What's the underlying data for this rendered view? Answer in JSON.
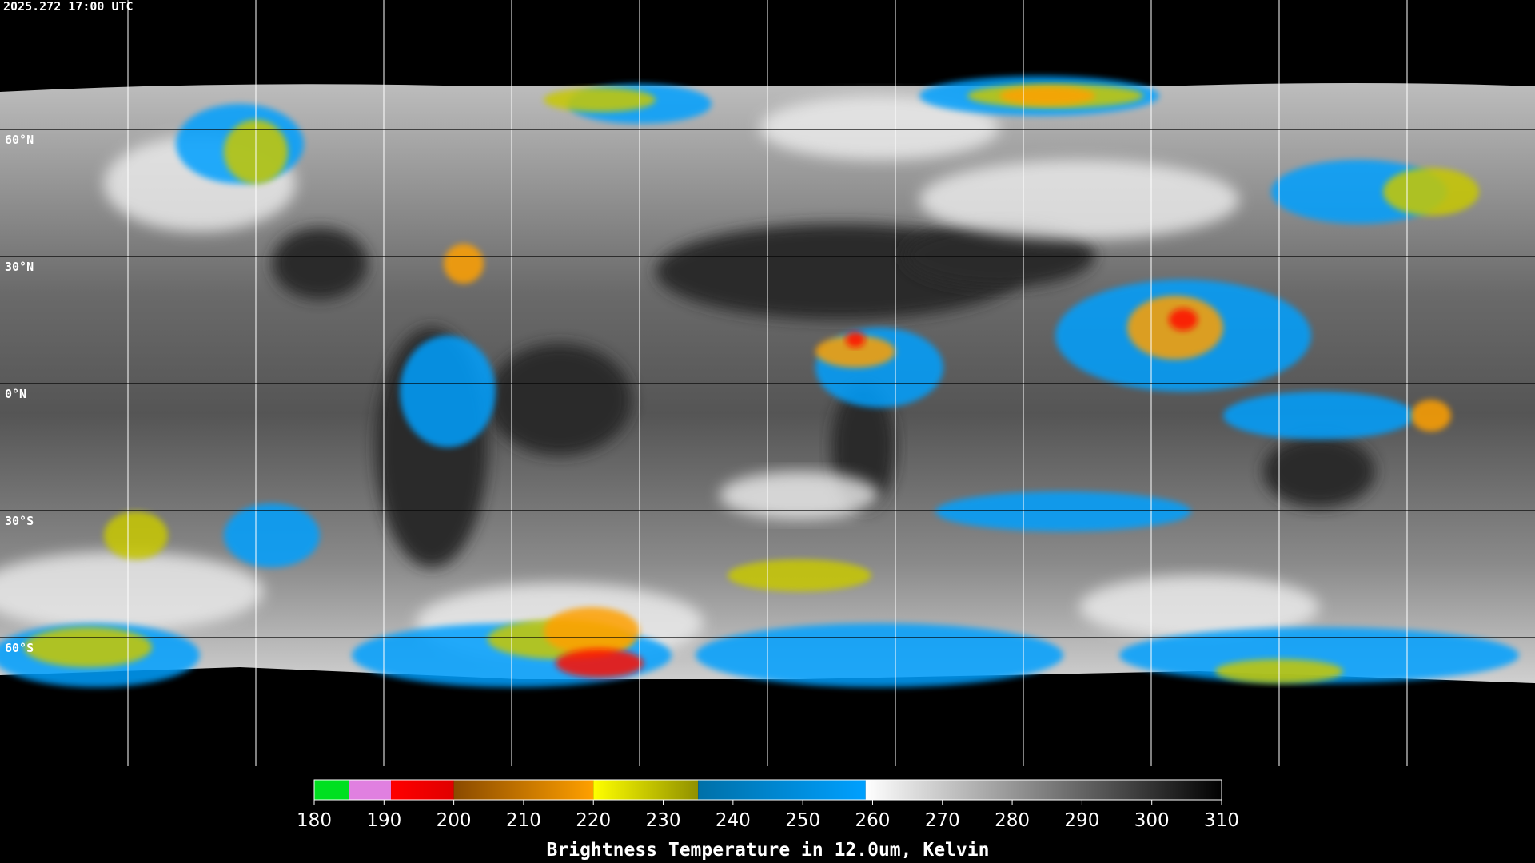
{
  "timestamp": "2025.272 17:00 UTC",
  "latitude_lines": [
    {
      "value": 60,
      "label": "60°N"
    },
    {
      "value": 30,
      "label": "30°N"
    },
    {
      "value": 0,
      "label": "0°N"
    },
    {
      "value": -30,
      "label": "30°S"
    },
    {
      "value": -60,
      "label": "60°S"
    }
  ],
  "colorbar": {
    "title": "Brightness Temperature in 12.0um, Kelvin",
    "range": [
      180,
      310
    ],
    "ticks": [
      180,
      190,
      200,
      210,
      220,
      230,
      240,
      250,
      260,
      270,
      280,
      290,
      300,
      310
    ],
    "segments": [
      {
        "from": 180,
        "to": 185,
        "colors": [
          "#00e020",
          "#00e020"
        ]
      },
      {
        "from": 185,
        "to": 191,
        "colors": [
          "#e080e0",
          "#e080e0"
        ]
      },
      {
        "from": 191,
        "to": 200,
        "colors": [
          "#ff0000",
          "#e00000"
        ]
      },
      {
        "from": 200,
        "to": 220,
        "colors": [
          "#8a4a00",
          "#ffa000"
        ]
      },
      {
        "from": 220,
        "to": 235,
        "colors": [
          "#ffff00",
          "#909000"
        ]
      },
      {
        "from": 235,
        "to": 259,
        "colors": [
          "#0070a8",
          "#00a0ff"
        ]
      },
      {
        "from": 259,
        "to": 310,
        "colors": [
          "#ffffff",
          "#000000"
        ]
      }
    ]
  }
}
